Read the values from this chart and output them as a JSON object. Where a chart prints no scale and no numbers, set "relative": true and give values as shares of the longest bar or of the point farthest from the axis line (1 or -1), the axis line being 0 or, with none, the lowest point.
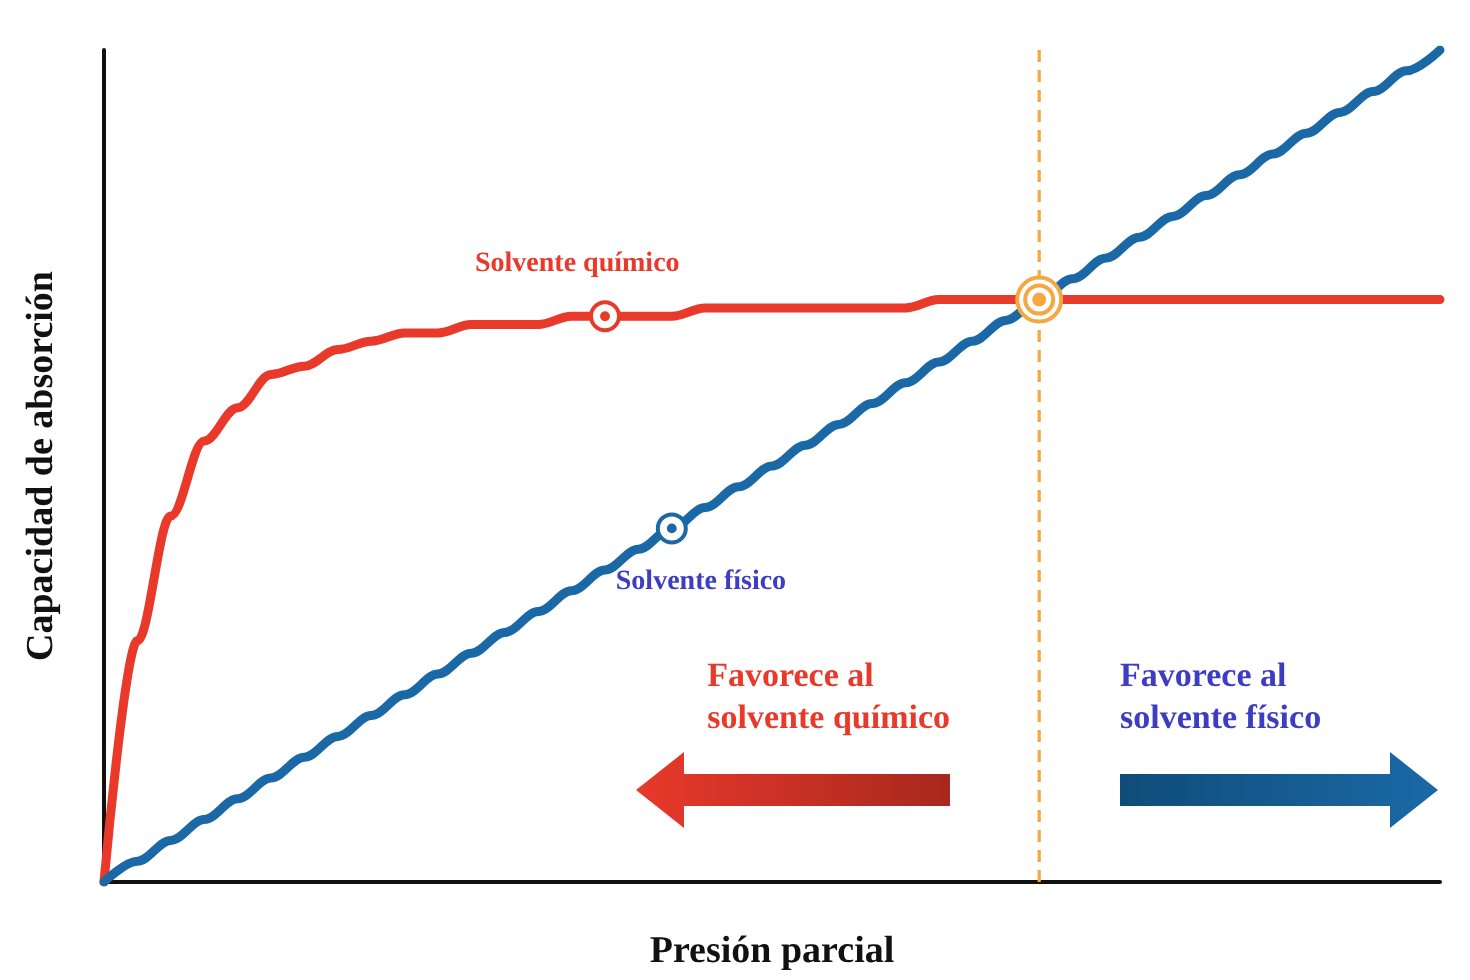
{
  "chart_data": {
    "type": "line",
    "relative": true,
    "xlabel": "Presión parcial",
    "ylabel": "Capacidad de absorción",
    "categories": [
      null,
      null,
      null,
      null,
      null,
      null,
      null,
      null,
      null,
      null,
      null,
      null,
      null,
      null,
      null,
      null,
      null,
      null,
      null,
      null,
      null,
      null,
      null,
      null,
      null,
      null,
      null,
      null,
      null,
      null,
      null,
      null,
      null,
      null,
      null,
      null,
      null,
      null,
      null,
      null,
      null
    ],
    "series": [
      {
        "name": "Solvente químico",
        "color": "#e8392b",
        "values": [
          0,
          0.29,
          0.44,
          0.53,
          0.57,
          0.61,
          0.62,
          0.64,
          0.65,
          0.66,
          0.66,
          0.67,
          0.67,
          0.67,
          0.68,
          0.68,
          0.68,
          0.68,
          0.69,
          0.69,
          0.69,
          0.69,
          0.69,
          0.69,
          0.69,
          0.7,
          0.7,
          0.7,
          0.7,
          0.7,
          0.7,
          0.7,
          0.7,
          0.7,
          0.7,
          0.7,
          0.7,
          0.7,
          0.7,
          0.7,
          0.7
        ]
      },
      {
        "name": "Solvente físico",
        "color": "#1a69a6",
        "values": [
          0,
          0.025,
          0.05,
          0.075,
          0.1,
          0.125,
          0.15,
          0.175,
          0.2,
          0.225,
          0.25,
          0.275,
          0.3,
          0.325,
          0.35,
          0.375,
          0.4,
          0.425,
          0.45,
          0.475,
          0.5,
          0.525,
          0.55,
          0.575,
          0.6,
          0.625,
          0.65,
          0.675,
          0.7,
          0.725,
          0.75,
          0.775,
          0.8,
          0.825,
          0.85,
          0.875,
          0.9,
          0.925,
          0.95,
          0.975,
          1
        ]
      }
    ],
    "annotations": [
      "Favorece al\nsolvente químico",
      "Favorece al\nsolvente físico"
    ],
    "legend": false,
    "grid": false,
    "marker": "none",
    "line_style": "solid"
  }
}
